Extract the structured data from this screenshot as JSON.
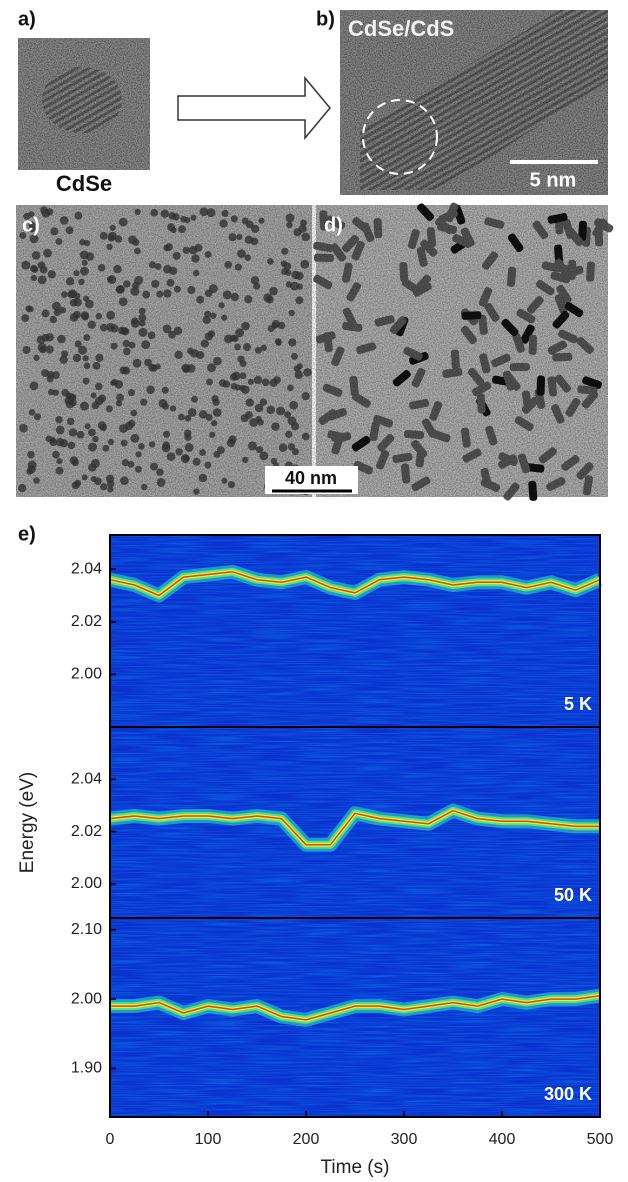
{
  "figure": {
    "panel_labels": [
      "a)",
      "b)",
      "c)",
      "d)",
      "e)"
    ],
    "core_label": "CdSe",
    "shell_label": "CdSe/CdS",
    "scale_small": "5 nm",
    "scale_large": "40 nm"
  },
  "chart_data": [
    {
      "type": "line",
      "temperature": "5 K",
      "xlim": [
        0,
        500
      ],
      "x": [
        0,
        25,
        50,
        75,
        100,
        125,
        150,
        175,
        200,
        225,
        250,
        275,
        300,
        325,
        350,
        375,
        400,
        425,
        450,
        475,
        500
      ],
      "values": [
        2.036,
        2.034,
        2.03,
        2.037,
        2.038,
        2.039,
        2.036,
        2.035,
        2.037,
        2.033,
        2.031,
        2.036,
        2.037,
        2.036,
        2.034,
        2.035,
        2.035,
        2.033,
        2.035,
        2.032,
        2.036
      ],
      "ylim": [
        1.98,
        2.053
      ],
      "yticks": [
        {
          "value": 2.0,
          "label": "2.00"
        },
        2.02,
        2.04
      ]
    },
    {
      "type": "line",
      "temperature": "50 K",
      "y_label": "Energy (eV)",
      "xlim": [
        0,
        500
      ],
      "x": [
        0,
        25,
        50,
        75,
        100,
        125,
        150,
        175,
        200,
        225,
        250,
        275,
        300,
        325,
        350,
        375,
        400,
        425,
        450,
        475,
        500
      ],
      "values": [
        2.025,
        2.026,
        2.025,
        2.026,
        2.026,
        2.025,
        2.026,
        2.025,
        2.015,
        2.015,
        2.027,
        2.025,
        2.024,
        2.023,
        2.028,
        2.025,
        2.024,
        2.024,
        2.023,
        2.022,
        2.022
      ],
      "ylim": [
        1.987,
        2.06
      ],
      "yticks": [
        {
          "value": 2.0,
          "label": "2.00"
        },
        2.02,
        2.04
      ]
    },
    {
      "type": "line",
      "temperature": "300 K",
      "x_label": "Time (s)",
      "xlim": [
        0,
        500
      ],
      "xticks": [
        0,
        100,
        200,
        300,
        400,
        500
      ],
      "x": [
        0,
        25,
        50,
        75,
        100,
        125,
        150,
        175,
        200,
        225,
        250,
        275,
        300,
        325,
        350,
        375,
        400,
        425,
        450,
        475,
        500
      ],
      "values": [
        1.99,
        1.99,
        1.995,
        1.98,
        1.99,
        1.985,
        1.99,
        1.975,
        1.97,
        1.98,
        1.99,
        1.99,
        1.985,
        1.99,
        1.995,
        1.99,
        2.0,
        1.995,
        2.0,
        2.0,
        2.005
      ],
      "ylim": [
        1.83,
        2.117
      ],
      "yticks": [
        {
          "value": 1.9,
          "label": "1.90"
        },
        {
          "value": 2.0,
          "label": "2.00"
        },
        {
          "value": 2.1,
          "label": "2.10"
        }
      ]
    }
  ]
}
